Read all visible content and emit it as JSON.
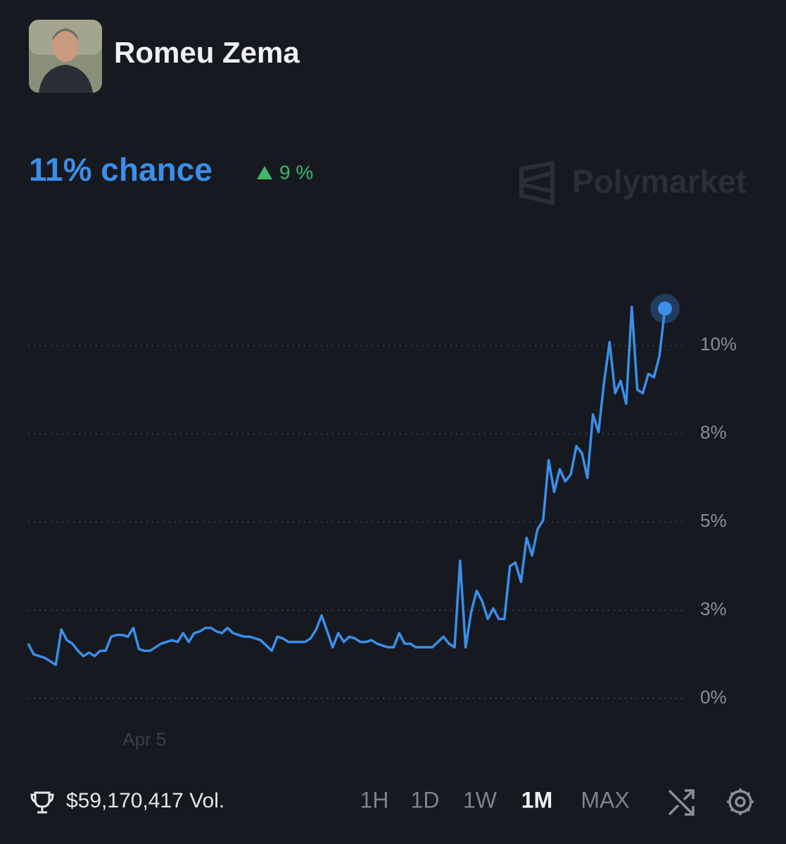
{
  "header": {
    "title": "Romeu Zema",
    "chance": "11% chance",
    "change": "9 %",
    "watermark": "Polymarket"
  },
  "chart_data": {
    "type": "line",
    "color": "#3b8eea",
    "grid": true,
    "ylim": [
      0,
      12
    ],
    "yticks": [
      {
        "value": 0,
        "label": "0%"
      },
      {
        "value": 2.5,
        "label": "3%"
      },
      {
        "value": 5,
        "label": "5%"
      },
      {
        "value": 7.5,
        "label": "8%"
      },
      {
        "value": 10,
        "label": "10%"
      }
    ],
    "categories": [
      null,
      null,
      null,
      null,
      null,
      null,
      null,
      null,
      null,
      null,
      null,
      null,
      null,
      null,
      null,
      null,
      null,
      null,
      null,
      null,
      null,
      "Apr 5",
      null,
      null,
      null,
      null,
      null,
      null,
      null,
      null,
      null,
      null,
      null,
      null,
      null,
      null,
      null,
      null,
      null,
      null,
      null,
      null,
      null,
      null,
      null,
      null,
      null,
      null,
      null,
      null,
      null,
      null,
      null,
      null,
      null,
      null,
      null,
      null,
      null,
      null,
      null,
      null,
      null,
      null,
      null,
      null,
      null,
      null,
      null,
      null,
      null,
      null,
      null,
      null,
      null,
      null,
      null,
      null,
      null,
      null,
      null,
      null,
      null,
      null,
      null,
      null,
      null,
      null,
      null,
      null,
      null,
      null,
      null,
      null,
      null,
      null,
      null,
      null,
      null,
      null,
      null,
      null,
      null,
      null,
      null,
      null,
      null,
      null,
      null,
      null,
      null,
      null,
      null,
      null,
      null,
      null
    ],
    "values": [
      1.55,
      1.25,
      1.2,
      1.15,
      1.05,
      0.95,
      1.95,
      1.65,
      1.55,
      1.35,
      1.2,
      1.3,
      1.2,
      1.35,
      1.35,
      1.75,
      1.8,
      1.8,
      1.75,
      2.0,
      1.4,
      1.35,
      1.35,
      1.45,
      1.55,
      1.6,
      1.65,
      1.6,
      1.85,
      1.6,
      1.85,
      1.9,
      2.0,
      2.0,
      1.9,
      1.85,
      2.0,
      1.85,
      1.8,
      1.75,
      1.75,
      1.7,
      1.65,
      1.5,
      1.35,
      1.75,
      1.7,
      1.6,
      1.6,
      1.6,
      1.6,
      1.7,
      1.95,
      2.35,
      1.9,
      1.45,
      1.85,
      1.6,
      1.75,
      1.7,
      1.6,
      1.6,
      1.65,
      1.55,
      1.5,
      1.45,
      1.45,
      1.85,
      1.55,
      1.55,
      1.45,
      1.45,
      1.45,
      1.45,
      1.6,
      1.75,
      1.55,
      1.45,
      3.9,
      1.45,
      2.45,
      3.05,
      2.75,
      2.25,
      2.55,
      2.25,
      2.25,
      3.75,
      3.85,
      3.3,
      4.55,
      4.05,
      4.8,
      5.05,
      6.75,
      5.85,
      6.5,
      6.15,
      6.35,
      7.15,
      6.95,
      6.25,
      8.05,
      7.55,
      8.95,
      10.1,
      8.65,
      9.0,
      8.35,
      11.1,
      8.75,
      8.65,
      9.2,
      9.1,
      9.7,
      11.05
    ]
  },
  "footer": {
    "volume": "$59,170,417 Vol.",
    "ranges": [
      "1H",
      "1D",
      "1W",
      "1M",
      "MAX"
    ],
    "active": "1M"
  }
}
